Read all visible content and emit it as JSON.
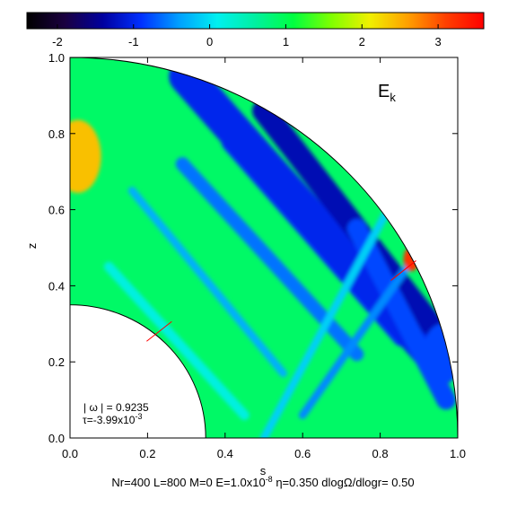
{
  "chart_data": {
    "type": "heatmap",
    "title_symbol": "E",
    "title_subscript": "k",
    "colorbar": {
      "range": [
        -2.4,
        3.6
      ],
      "ticks": [
        -2,
        -1,
        0,
        1,
        2,
        3
      ],
      "tick_labels": [
        "-2",
        "-1",
        "0",
        "1",
        "2",
        "3"
      ],
      "colormap": [
        "#000000",
        "#1a0040",
        "#0000a0",
        "#0030ff",
        "#00a0ff",
        "#00f0f0",
        "#00f0a0",
        "#00ff40",
        "#80ff00",
        "#f0f000",
        "#ffa000",
        "#ff4000",
        "#ff0000"
      ]
    },
    "xlabel": "s",
    "ylabel": "z",
    "xlim": [
      0.0,
      1.0
    ],
    "ylim": [
      0.0,
      1.0
    ],
    "x_ticks": [
      0.0,
      0.2,
      0.4,
      0.6,
      0.8,
      1.0
    ],
    "x_tick_labels": [
      "0.0",
      "0.2",
      "0.4",
      "0.6",
      "0.8",
      "1.0"
    ],
    "y_ticks": [
      0.0,
      0.2,
      0.4,
      0.6,
      0.8,
      1.0
    ],
    "y_tick_labels": [
      "0.0",
      "0.2",
      "0.4",
      "0.6",
      "0.8",
      "1.0"
    ],
    "inner_radius": 0.35,
    "outer_radius": 1.0,
    "background_value": 0.9,
    "features": [
      {
        "kind": "ray_band",
        "start": [
          0.29,
          0.72
        ],
        "end": [
          0.74,
          0.22
        ],
        "value": -0.6,
        "width": 0.035
      },
      {
        "kind": "ray_band",
        "start": [
          0.16,
          0.65
        ],
        "end": [
          0.55,
          0.17
        ],
        "value": -0.3,
        "width": 0.02
      },
      {
        "kind": "ray_band",
        "start": [
          0.42,
          0.78
        ],
        "end": [
          0.86,
          0.27
        ],
        "value": -0.9,
        "width": 0.06
      },
      {
        "kind": "ray_band",
        "start": [
          0.3,
          0.95
        ],
        "end": [
          0.95,
          0.2
        ],
        "value": -1.0,
        "width": 0.09
      },
      {
        "kind": "ray_band",
        "start": [
          0.5,
          0.86
        ],
        "end": [
          0.93,
          0.3
        ],
        "value": -1.3,
        "width": 0.06
      },
      {
        "kind": "ray_band",
        "start": [
          0.74,
          0.55
        ],
        "end": [
          0.97,
          0.1
        ],
        "value": -0.8,
        "width": 0.05
      },
      {
        "kind": "ray_band",
        "start": [
          0.1,
          0.45
        ],
        "end": [
          0.45,
          0.06
        ],
        "value": 0.2,
        "width": 0.025
      },
      {
        "kind": "ray_band",
        "start": [
          0.82,
          0.6
        ],
        "end": [
          0.5,
          0.0
        ],
        "value": -0.1,
        "width": 0.02
      },
      {
        "kind": "ray_band",
        "start": [
          0.87,
          0.45
        ],
        "end": [
          0.6,
          0.06
        ],
        "value": -0.5,
        "width": 0.02
      },
      {
        "kind": "blob",
        "center": [
          0.02,
          0.74
        ],
        "value": 2.4,
        "radius": 0.06
      },
      {
        "kind": "blob",
        "center": [
          0.88,
          0.47
        ],
        "value": 3.2,
        "radius": 0.02
      },
      {
        "kind": "blob",
        "center": [
          0.96,
          0.22
        ],
        "value": -0.8,
        "radius": 0.05
      }
    ],
    "critical_latitude_markers": [
      {
        "at": [
          0.23,
          0.28
        ]
      },
      {
        "at": [
          0.86,
          0.44
        ]
      }
    ],
    "annotations": {
      "omega_line": "| ω | = 0.9235",
      "tau_base": "τ=-3.99x10",
      "tau_exp": "-3"
    },
    "footer": "Nr=400 L=800 M=0 E=1.0x10",
    "footer_exp": "-8",
    "footer_rest": " η=0.350 dlogΩ/dlogr= 0.50"
  }
}
